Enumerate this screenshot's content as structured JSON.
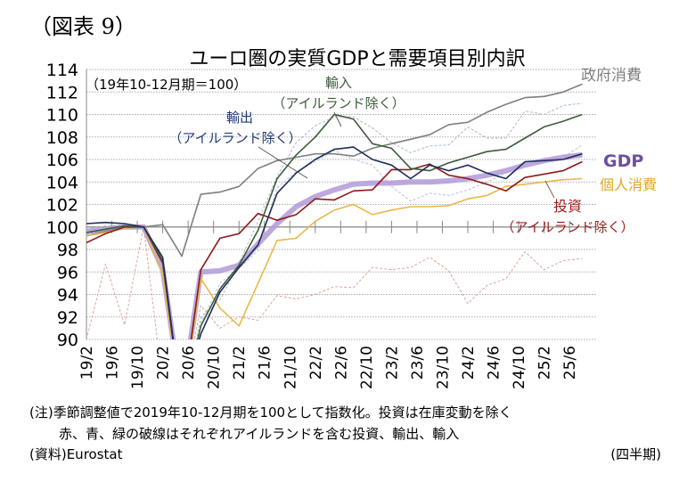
{
  "figure_label": "（図表 9）",
  "chart_data": {
    "type": "line",
    "title": "ユーロ圏の実質GDPと需要項目別内訳",
    "subtitle": "（19年10-12月期＝100）",
    "xlabel": "（四半期）",
    "ylabel": "",
    "ylim": [
      90,
      114
    ],
    "yticks": [
      90,
      92,
      94,
      96,
      98,
      100,
      102,
      104,
      106,
      108,
      110,
      112,
      114
    ],
    "grid": true,
    "x": [
      "19Q1",
      "19Q2",
      "19Q3",
      "19Q4",
      "20Q1",
      "20Q2",
      "20Q3",
      "20Q4",
      "21Q1",
      "21Q2",
      "21Q3",
      "21Q4",
      "22Q1",
      "22Q2",
      "22Q3",
      "22Q4",
      "23Q1",
      "23Q2",
      "23Q3",
      "23Q4",
      "24Q1",
      "24Q2",
      "24Q3",
      "24Q4",
      "25Q1",
      "25Q2",
      "25Q3"
    ],
    "xtick_labels": [
      "19/2",
      "19/6",
      "19/10",
      "20/2",
      "20/6",
      "20/10",
      "21/2",
      "21/6",
      "21/10",
      "22/2",
      "22/6",
      "22/10",
      "23/2",
      "23/6",
      "23/10",
      "24/2",
      "24/6",
      "24/10",
      "25/2",
      "25/6"
    ],
    "series": [
      {
        "name": "政府消費",
        "key": "gov",
        "color": "#7f7f7f",
        "style": "solid",
        "values": [
          99.2,
          99.6,
          100.0,
          100.0,
          100.2,
          97.4,
          102.9,
          103.1,
          103.6,
          105.2,
          105.9,
          106.2,
          106.5,
          106.5,
          106.3,
          107.0,
          107.4,
          107.8,
          108.2,
          109.1,
          109.3,
          110.2,
          110.9,
          111.5,
          111.6,
          112.0,
          112.7
        ]
      },
      {
        "name": "輸入（アイルランドを含む）",
        "key": "imp_ie",
        "color": "#a9b8c6",
        "style": "dashed",
        "values": [
          99.3,
          99.7,
          100.0,
          100.0,
          96.8,
          84.0,
          92.0,
          93.5,
          96.8,
          100.5,
          104.5,
          107.5,
          109.0,
          109.8,
          109.8,
          108.8,
          107.5,
          106.6,
          107.2,
          107.3,
          108.9,
          107.9,
          107.9,
          110.3,
          110.0,
          110.8,
          111.0
        ]
      },
      {
        "name": "輸入（アイルランド除く）",
        "key": "imp",
        "color": "#3d5c3a",
        "style": "solid",
        "values": [
          99.5,
          99.8,
          100.1,
          100.0,
          97.0,
          84.0,
          91.2,
          94.5,
          96.6,
          99.7,
          104.3,
          106.4,
          108.0,
          110.0,
          109.6,
          107.4,
          107.0,
          105.2,
          105.0,
          105.7,
          106.2,
          106.7,
          106.9,
          107.9,
          108.9,
          109.4,
          110.0
        ]
      },
      {
        "name": "輸出（アイルランド除く）",
        "key": "exp",
        "color": "#1f2d5c",
        "style": "solid",
        "values": [
          100.3,
          100.4,
          100.3,
          100.0,
          97.3,
          84.0,
          90.5,
          94.2,
          96.4,
          98.4,
          103.0,
          104.8,
          106.0,
          106.9,
          107.1,
          106.0,
          105.5,
          104.3,
          105.5,
          105.0,
          105.5,
          104.8,
          104.3,
          105.8,
          105.9,
          106.0,
          106.5
        ]
      },
      {
        "name": "輸出（アイルランドを含む）",
        "key": "exp_ie",
        "color": "#b6c3d6",
        "style": "dashed",
        "values": [
          99.8,
          100.1,
          100.2,
          100.0,
          97.0,
          84.0,
          91.5,
          95.0,
          96.3,
          97.9,
          103.5,
          104.9,
          105.8,
          106.8,
          106.0,
          105.5,
          103.6,
          102.3,
          103.0,
          102.8,
          103.3,
          104.0,
          104.8,
          105.8,
          106.0,
          106.2,
          107.3
        ]
      },
      {
        "name": "投資（アイルランド除く）",
        "key": "inv",
        "color": "#8b1a1a",
        "style": "solid",
        "values": [
          98.6,
          99.4,
          100.0,
          100.0,
          96.8,
          84.0,
          96.2,
          99.0,
          99.4,
          101.2,
          100.6,
          101.1,
          102.5,
          102.4,
          103.2,
          103.3,
          105.1,
          105.1,
          105.6,
          104.6,
          104.3,
          103.8,
          103.2,
          104.4,
          104.7,
          105.0,
          105.8
        ]
      },
      {
        "name": "投資（アイルランドを含む）",
        "key": "inv_ie",
        "color": "#d9a89a",
        "style": "dashed",
        "values": [
          90.0,
          96.7,
          91.3,
          100.0,
          86.0,
          84.0,
          93.0,
          91.0,
          92.0,
          91.7,
          93.9,
          93.6,
          94.0,
          94.7,
          94.6,
          96.4,
          96.2,
          96.4,
          97.3,
          96.1,
          93.2,
          94.8,
          95.4,
          97.8,
          96.2,
          97.0,
          97.2
        ]
      },
      {
        "name": "個人消費",
        "key": "pc",
        "color": "#e8b84a",
        "style": "solid",
        "values": [
          99.2,
          99.5,
          99.9,
          100.0,
          95.8,
          84.0,
          95.4,
          92.8,
          91.2,
          95.0,
          98.8,
          99.0,
          100.5,
          101.5,
          102.0,
          101.1,
          101.5,
          101.8,
          101.8,
          101.9,
          102.5,
          102.8,
          103.6,
          103.8,
          104.0,
          104.2,
          104.3
        ]
      },
      {
        "name": "GDP",
        "key": "gdp",
        "color": "#b29ad8",
        "style": "thick",
        "values": [
          99.6,
          99.8,
          100.0,
          100.0,
          96.2,
          84.8,
          96.0,
          96.1,
          96.6,
          98.5,
          100.3,
          101.8,
          102.7,
          103.3,
          103.8,
          103.9,
          103.9,
          104.0,
          104.0,
          104.1,
          104.3,
          104.6,
          105.0,
          105.5,
          105.9,
          106.2,
          106.4
        ]
      }
    ],
    "annotations": [
      {
        "text": "輸入",
        "color": "#3d5c3a"
      },
      {
        "text": "（アイルランド除く）",
        "color": "#3d5c3a"
      },
      {
        "text": "輸出",
        "color": "#1f3a78"
      },
      {
        "text": "（アイルランド除く）",
        "color": "#1f3a78"
      },
      {
        "text": "政府消費",
        "color": "#7f7f7f"
      },
      {
        "text": "GDP",
        "color": "#6b4fa0"
      },
      {
        "text": "個人消費",
        "color": "#e0a820"
      },
      {
        "text": "投資",
        "color": "#a01a1a"
      },
      {
        "text": "（アイルランド除く）",
        "color": "#a01a1a"
      }
    ]
  },
  "notes": {
    "line1": "(注)季節調整値で2019年10-12月期を100として指数化。投資は在庫変動を除く",
    "line2": "赤、青、緑の破線はそれぞれアイルランドを含む投資、輸出、輸入",
    "source": "(資料)Eurostat",
    "unit": "(四半期)"
  }
}
